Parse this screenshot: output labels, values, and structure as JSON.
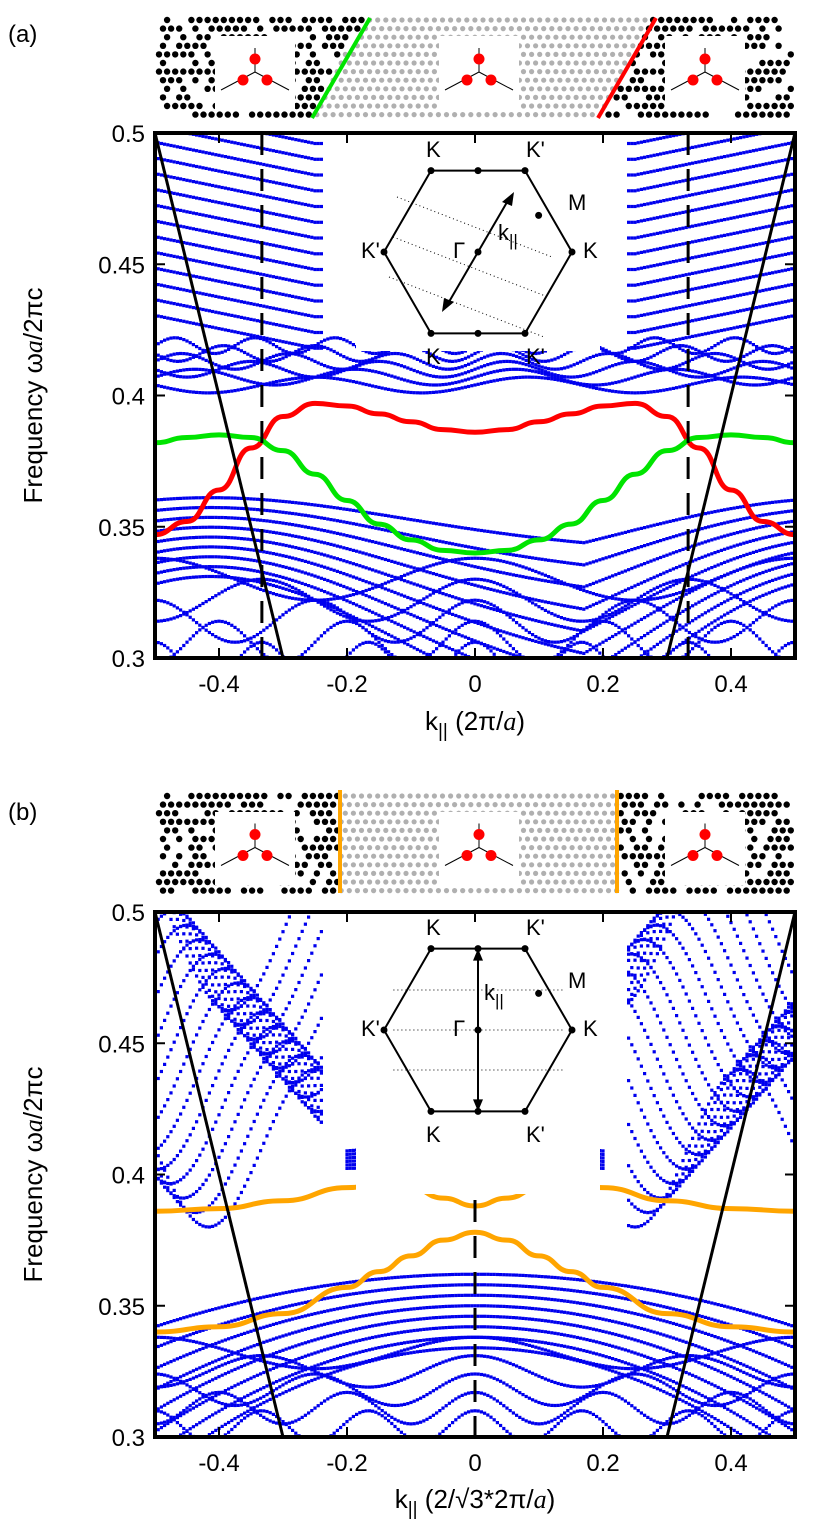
{
  "chart_data": [
    {
      "type": "line",
      "panel_label": "(a)",
      "xlabel_main": "k",
      "xlabel_sub": "||",
      "xlabel_unit": " (2π/",
      "xlabel_unit_a": "a",
      "xlabel_unit_end": ")",
      "ylabel_pre": "Frequency ω",
      "ylabel_a": "a",
      "ylabel_post": "/2πc",
      "xlim": [
        -0.5,
        0.5
      ],
      "ylim": [
        0.3,
        0.5
      ],
      "x_ticks": [
        -0.4,
        -0.2,
        0,
        0.2,
        0.4
      ],
      "x_tick_labels": [
        "-0.4",
        "-0.2",
        "0",
        "0.2",
        "0.4"
      ],
      "y_ticks": [
        0.3,
        0.35,
        0.4,
        0.45,
        0.5
      ],
      "y_tick_labels": [
        "0.3",
        "0.35",
        "0.4",
        "0.45",
        "0.5"
      ],
      "dashed_vlines_x": [
        -0.333,
        0.333
      ],
      "light_lines": [
        {
          "x": [
            -0.5,
            -0.3
          ],
          "y": [
            0.5,
            0.3
          ]
        },
        {
          "x": [
            0.3,
            0.5
          ],
          "y": [
            0.3,
            0.5
          ]
        }
      ],
      "edge_modes": [
        {
          "color": "#ff0000",
          "x": [
            -0.5,
            -0.45,
            -0.4,
            -0.35,
            -0.3,
            -0.25,
            -0.2,
            -0.15,
            -0.1,
            -0.05,
            0,
            0.05,
            0.1,
            0.15,
            0.2,
            0.25,
            0.3,
            0.35,
            0.4,
            0.45,
            0.5
          ],
          "y": [
            0.347,
            0.352,
            0.364,
            0.38,
            0.392,
            0.397,
            0.396,
            0.393,
            0.39,
            0.387,
            0.386,
            0.387,
            0.39,
            0.393,
            0.396,
            0.397,
            0.392,
            0.38,
            0.364,
            0.352,
            0.347
          ]
        },
        {
          "color": "#00e400",
          "x": [
            -0.5,
            -0.45,
            -0.4,
            -0.35,
            -0.3,
            -0.25,
            -0.2,
            -0.15,
            -0.1,
            -0.05,
            0,
            0.05,
            0.1,
            0.15,
            0.2,
            0.25,
            0.3,
            0.35,
            0.4,
            0.45,
            0.5
          ],
          "y": [
            0.382,
            0.384,
            0.385,
            0.384,
            0.379,
            0.37,
            0.36,
            0.351,
            0.345,
            0.341,
            0.34,
            0.341,
            0.345,
            0.351,
            0.36,
            0.37,
            0.379,
            0.384,
            0.385,
            0.384,
            0.382
          ]
        }
      ],
      "bz_labels": [
        "K",
        "K'",
        "M",
        "K'",
        "Γ",
        "K",
        "K",
        "K'"
      ],
      "kpar_label_main": "k",
      "kpar_label_sub": "||",
      "interface_colors": [
        "#00e400",
        "#ff0000"
      ]
    },
    {
      "type": "line",
      "panel_label": "(b)",
      "xlabel_main": "k",
      "xlabel_sub": "||",
      "xlabel_unit": " (2/√3*2π/",
      "xlabel_unit_a": "a",
      "xlabel_unit_end": ")",
      "ylabel_pre": "Frequency ω",
      "ylabel_a": "a",
      "ylabel_post": "/2πc",
      "xlim": [
        -0.5,
        0.5
      ],
      "ylim": [
        0.3,
        0.5
      ],
      "x_ticks": [
        -0.4,
        -0.2,
        0,
        0.2,
        0.4
      ],
      "x_tick_labels": [
        "-0.4",
        "-0.2",
        "0",
        "0.2",
        "0.4"
      ],
      "y_ticks": [
        0.3,
        0.35,
        0.4,
        0.45,
        0.5
      ],
      "y_tick_labels": [
        "0.3",
        "0.35",
        "0.4",
        "0.45",
        "0.5"
      ],
      "dashed_vlines_x": [
        0
      ],
      "light_lines": [
        {
          "x": [
            -0.5,
            -0.3
          ],
          "y": [
            0.5,
            0.3
          ]
        },
        {
          "x": [
            0.3,
            0.5
          ],
          "y": [
            0.3,
            0.5
          ]
        }
      ],
      "edge_modes": [
        {
          "color": "#ffa500",
          "x": [
            -0.5,
            -0.4,
            -0.3,
            -0.2,
            -0.15,
            -0.1,
            -0.05,
            0,
            0.05,
            0.1,
            0.15,
            0.2,
            0.3,
            0.4,
            0.5
          ],
          "y": [
            0.386,
            0.387,
            0.39,
            0.395,
            0.396,
            0.395,
            0.391,
            0.388,
            0.391,
            0.395,
            0.396,
            0.395,
            0.39,
            0.387,
            0.386
          ]
        },
        {
          "color": "#ffa500",
          "x": [
            -0.5,
            -0.4,
            -0.3,
            -0.2,
            -0.15,
            -0.1,
            -0.05,
            0,
            0.05,
            0.1,
            0.15,
            0.2,
            0.3,
            0.4,
            0.5
          ],
          "y": [
            0.34,
            0.342,
            0.347,
            0.357,
            0.363,
            0.369,
            0.375,
            0.378,
            0.375,
            0.369,
            0.363,
            0.357,
            0.347,
            0.342,
            0.34
          ]
        }
      ],
      "bz_labels": [
        "K",
        "K'",
        "M",
        "K'",
        "Γ",
        "K",
        "K",
        "K'"
      ],
      "kpar_label_main": "k",
      "kpar_label_sub": "||",
      "interface_colors": [
        "#ffa500",
        "#ffa500"
      ]
    }
  ]
}
